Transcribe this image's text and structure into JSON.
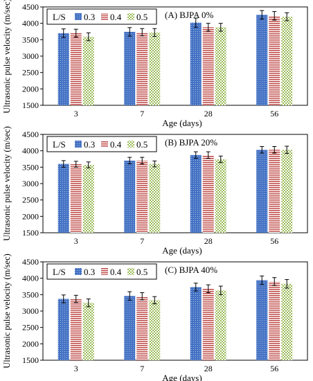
{
  "colors": {
    "s03": "#4472C4",
    "s04": "#C0504D",
    "s05": "#9BBB59",
    "errorbar": "#000000",
    "axis": "#000000"
  },
  "chart_data": [
    {
      "type": "bar",
      "title": "(A)  BJPA 0%",
      "xlabel": "Age (days)",
      "ylabel": "Ultrasonic pulse velocity (m/sec)",
      "ylim": [
        1500,
        4500
      ],
      "yticks": [
        "1500",
        "2000",
        "2500",
        "3000",
        "3500",
        "4000",
        "4500"
      ],
      "categories": [
        "3",
        "7",
        "28",
        "56"
      ],
      "legend_title": "L/S",
      "legend_position": "top-left",
      "grid": false,
      "series": [
        {
          "name": "0.3",
          "values": [
            3700,
            3740,
            4020,
            4260
          ],
          "errors": [
            130,
            130,
            140,
            130
          ]
        },
        {
          "name": "0.4",
          "values": [
            3700,
            3730,
            3880,
            4230
          ],
          "errors": [
            120,
            110,
            120,
            130
          ]
        },
        {
          "name": "0.5",
          "values": [
            3590,
            3720,
            3880,
            4200
          ],
          "errors": [
            120,
            120,
            120,
            120
          ]
        }
      ]
    },
    {
      "type": "bar",
      "title": "(B)  BJPA 20%",
      "xlabel": "Age (days)",
      "ylabel": "Ultrasonic pulse velocity (m/sec)",
      "ylim": [
        1500,
        4500
      ],
      "yticks": [
        "1500",
        "2000",
        "2500",
        "3000",
        "3500",
        "4000",
        "4500"
      ],
      "categories": [
        "3",
        "7",
        "28",
        "56"
      ],
      "legend_title": "L/S",
      "legend_position": "top-left",
      "grid": false,
      "series": [
        {
          "name": "0.3",
          "values": [
            3600,
            3700,
            3870,
            4030
          ],
          "errors": [
            100,
            100,
            100,
            100
          ]
        },
        {
          "name": "0.4",
          "values": [
            3590,
            3700,
            3870,
            4030
          ],
          "errors": [
            90,
            100,
            100,
            100
          ]
        },
        {
          "name": "0.5",
          "values": [
            3570,
            3600,
            3740,
            4030
          ],
          "errors": [
            90,
            90,
            100,
            110
          ]
        }
      ]
    },
    {
      "type": "bar",
      "title": "(C)  BJPA 40%",
      "xlabel": "Age (days)",
      "ylabel": "Ultrasonic pulse velocity (m/sec)",
      "ylim": [
        1500,
        4500
      ],
      "yticks": [
        "1500",
        "2000",
        "2500",
        "3000",
        "3500",
        "4000",
        "4500"
      ],
      "categories": [
        "3",
        "7",
        "28",
        "56"
      ],
      "legend_title": "L/S",
      "legend_position": "top-left",
      "grid": false,
      "series": [
        {
          "name": "0.3",
          "values": [
            3370,
            3460,
            3730,
            3940
          ],
          "errors": [
            120,
            130,
            120,
            130
          ]
        },
        {
          "name": "0.4",
          "values": [
            3370,
            3450,
            3680,
            3900
          ],
          "errors": [
            110,
            110,
            120,
            120
          ]
        },
        {
          "name": "0.5",
          "values": [
            3250,
            3330,
            3630,
            3830
          ],
          "errors": [
            120,
            110,
            130,
            130
          ]
        }
      ]
    }
  ]
}
